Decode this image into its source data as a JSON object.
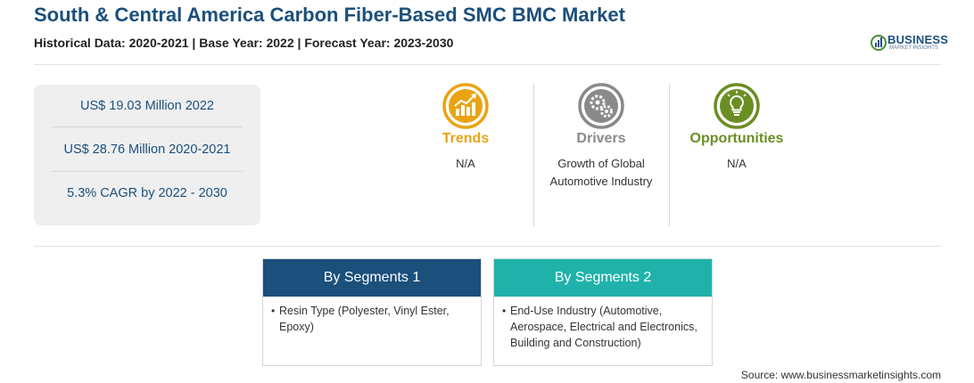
{
  "header": {
    "title": "South & Central America Carbon Fiber-Based SMC BMC Market",
    "subtitle": "Historical Data: 2020-2021 | Base Year: 2022 | Forecast Year: 2023-2030"
  },
  "logo": {
    "word": "BUSINESS",
    "sub": "MARKET INSIGHTS",
    "colors": {
      "primary": "#1b4f7c",
      "green": "#4a8f3a"
    }
  },
  "stats": [
    "US$ 19.03 Million 2022",
    "US$ 28.76 Million 2020-2021",
    "5.3% CAGR by 2022 - 2030"
  ],
  "factors": {
    "trends": {
      "title": "Trends",
      "text": "N/A",
      "icon": "trend-chart-icon",
      "color": "#e9a414"
    },
    "drivers": {
      "title": "Drivers",
      "text": "Growth of Global Automotive Industry",
      "icon": "gears-icon",
      "color": "#8a8a8a"
    },
    "opportunities": {
      "title": "Opportunities",
      "text": "N/A",
      "icon": "lightbulb-icon",
      "color": "#6b8e23"
    }
  },
  "segments": [
    {
      "title": "By Segments 1",
      "item": "Resin Type (Polyester, Vinyl Ester, Epoxy)",
      "color": "#1b4f7c"
    },
    {
      "title": "By Segments 2",
      "item": "End-Use Industry (Automotive, Aerospace, Electrical and Electronics, Building and Construction)",
      "color": "#20b2aa"
    }
  ],
  "source": "Source: www.businessmarketinsights.com"
}
